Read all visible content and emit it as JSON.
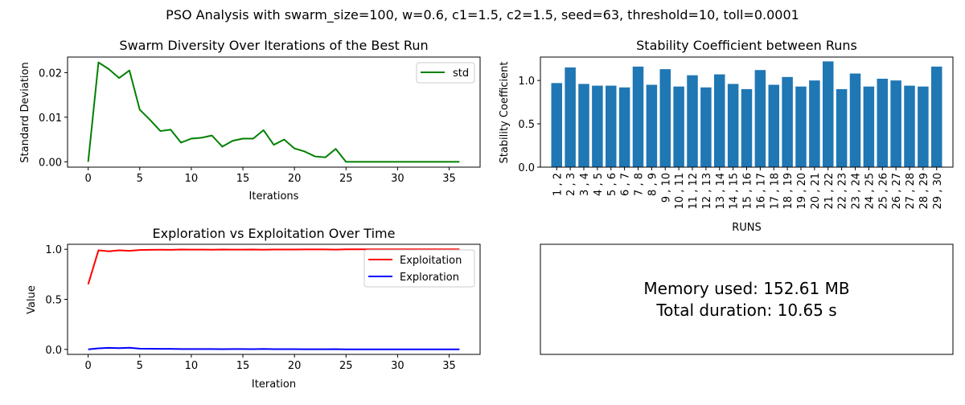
{
  "figure": {
    "suptitle": "PSO Analysis with swarm_size=100, w=0.6, c1=1.5, c2=1.5, seed=63, threshold=10, toll=0.0001"
  },
  "chart_data": [
    {
      "type": "line",
      "title": "Swarm Diversity Over Iterations of the Best Run",
      "xlabel": "Iterations",
      "ylabel": "Standard Deviation",
      "xlim": [
        -2,
        38
      ],
      "ylim": [
        -0.0012,
        0.0235
      ],
      "xticks": [
        0,
        5,
        10,
        15,
        20,
        25,
        30,
        35
      ],
      "yticks": [
        0.0,
        0.01,
        0.02
      ],
      "ytick_labels": [
        "0.00",
        "0.01",
        "0.02"
      ],
      "legend": "upper right",
      "series": [
        {
          "name": "std",
          "color": "#008000",
          "x": [
            0,
            1,
            2,
            3,
            4,
            5,
            6,
            7,
            8,
            9,
            10,
            11,
            12,
            13,
            14,
            15,
            16,
            17,
            18,
            19,
            20,
            21,
            22,
            23,
            24,
            25,
            26,
            27,
            28,
            29,
            30,
            31,
            32,
            33,
            34,
            35,
            36
          ],
          "y": [
            0.0,
            0.0223,
            0.0208,
            0.0188,
            0.0205,
            0.0117,
            0.0094,
            0.0069,
            0.0072,
            0.0043,
            0.0052,
            0.0054,
            0.0059,
            0.0034,
            0.0047,
            0.0052,
            0.0052,
            0.0071,
            0.0038,
            0.005,
            0.003,
            0.0023,
            0.0012,
            0.001,
            0.0029,
            0.0,
            0.0,
            0.0,
            0.0,
            0.0,
            0.0,
            0.0,
            0.0,
            0.0,
            0.0,
            0.0,
            0.0
          ]
        }
      ]
    },
    {
      "type": "bar",
      "title": "Stability Coefficient between Runs",
      "xlabel": "RUNS",
      "ylabel": "Stability Coefficient",
      "ylim": [
        0,
        1.27
      ],
      "yticks": [
        0.0,
        0.5,
        1.0
      ],
      "ytick_labels": [
        "0.0",
        "0.5",
        "1.0"
      ],
      "color": "#1f77b4",
      "categories": [
        "1 , 2",
        "2 , 3",
        "3 , 4",
        "4 , 5",
        "5 , 6",
        "6 , 7",
        "7 , 8",
        "8 , 9",
        "9 , 10",
        "10 , 11",
        "11 , 12",
        "12 , 13",
        "13 , 14",
        "14 , 15",
        "15 , 16",
        "16 , 17",
        "17 , 18",
        "18 , 19",
        "19 , 20",
        "20 , 21",
        "21 , 22",
        "22 , 23",
        "23 , 24",
        "24 , 25",
        "25 , 26",
        "26 , 27",
        "27 , 28",
        "28 , 29",
        "29 , 30"
      ],
      "values": [
        0.97,
        1.15,
        0.96,
        0.94,
        0.94,
        0.92,
        1.16,
        0.95,
        1.13,
        0.93,
        1.06,
        0.92,
        1.07,
        0.96,
        0.9,
        1.12,
        0.95,
        1.04,
        0.93,
        1.0,
        1.22,
        0.9,
        1.08,
        0.93,
        1.02,
        1.0,
        0.94,
        0.93,
        1.16
      ]
    },
    {
      "type": "line",
      "title": "Exploration vs Exploitation Over Time",
      "xlabel": "Iteration",
      "ylabel": "Value",
      "xlim": [
        -2,
        38
      ],
      "ylim": [
        -0.05,
        1.05
      ],
      "xticks": [
        0,
        5,
        10,
        15,
        20,
        25,
        30,
        35
      ],
      "yticks": [
        0.0,
        0.5,
        1.0
      ],
      "ytick_labels": [
        "0.0",
        "0.5",
        "1.0"
      ],
      "legend": "upper right",
      "series": [
        {
          "name": "Exploitation",
          "color": "#ff0000",
          "x": [
            0,
            1,
            2,
            3,
            4,
            5,
            6,
            7,
            8,
            9,
            10,
            11,
            12,
            13,
            14,
            15,
            16,
            17,
            18,
            19,
            20,
            21,
            22,
            23,
            24,
            25,
            26,
            27,
            28,
            29,
            30,
            31,
            32,
            33,
            34,
            35,
            36
          ],
          "y": [
            0.65,
            0.99,
            0.98,
            0.99,
            0.985,
            0.993,
            0.995,
            0.996,
            0.995,
            0.998,
            0.997,
            0.997,
            0.996,
            0.998,
            0.997,
            0.997,
            0.998,
            0.996,
            0.998,
            0.998,
            0.998,
            0.999,
            0.999,
            0.999,
            0.997,
            1.0,
            1.0,
            1.0,
            1.0,
            1.0,
            1.0,
            1.0,
            1.0,
            1.0,
            1.0,
            1.0,
            1.0
          ]
        },
        {
          "name": "Exploration",
          "color": "#0000ff",
          "x": [
            0,
            1,
            2,
            3,
            4,
            5,
            6,
            7,
            8,
            9,
            10,
            11,
            12,
            13,
            14,
            15,
            16,
            17,
            18,
            19,
            20,
            21,
            22,
            23,
            24,
            25,
            26,
            27,
            28,
            29,
            30,
            31,
            32,
            33,
            34,
            35,
            36
          ],
          "y": [
            0.0,
            0.01,
            0.015,
            0.012,
            0.016,
            0.007,
            0.006,
            0.005,
            0.005,
            0.003,
            0.003,
            0.003,
            0.003,
            0.002,
            0.003,
            0.003,
            0.002,
            0.004,
            0.002,
            0.002,
            0.002,
            0.001,
            0.001,
            0.001,
            0.002,
            0.0,
            0.0,
            0.0,
            0.0,
            0.0,
            0.0,
            0.0,
            0.0,
            0.0,
            0.0,
            0.0,
            0.0
          ]
        }
      ]
    }
  ],
  "summary": {
    "memory_line": "Memory used: 152.61 MB",
    "duration_line": "Total duration: 10.65 s"
  }
}
